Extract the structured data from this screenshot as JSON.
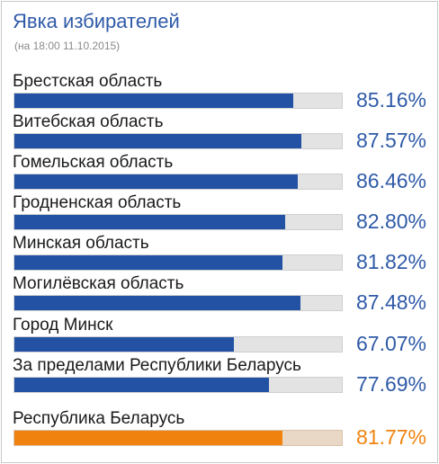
{
  "chart_data": {
    "type": "bar",
    "orientation": "horizontal",
    "title": "Явка избирателей",
    "subtitle": "(на 18:00 11.10.2015)",
    "xlim": [
      0,
      100
    ],
    "categories": [
      "Брестская область",
      "Витебская область",
      "Гомельская область",
      "Гродненская область",
      "Минская область",
      "Могилёвская область",
      "Город Минск",
      "За пределами Республики Беларусь",
      "Республика Беларусь"
    ],
    "values": [
      85.16,
      87.57,
      86.46,
      82.8,
      81.82,
      87.48,
      67.07,
      77.69,
      81.77
    ],
    "value_labels": [
      "85.16%",
      "87.57%",
      "86.46%",
      "82.80%",
      "81.82%",
      "87.48%",
      "67.07%",
      "77.69%",
      "81.77%"
    ],
    "bar_color": "#2352a4",
    "highlight_color": "#f0830f",
    "highlight_index": 8,
    "grid": false
  }
}
